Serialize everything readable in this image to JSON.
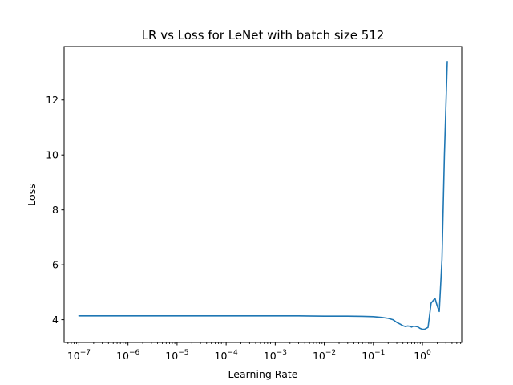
{
  "chart_data": {
    "type": "line",
    "title": "LR vs Loss for LeNet with batch size 512",
    "xlabel": "Learning Rate",
    "ylabel": "Loss",
    "x_scale": "log",
    "xlim": [
      5e-08,
      6.3
    ],
    "ylim": [
      3.17,
      13.95
    ],
    "grid": false,
    "x_ticks": [
      {
        "value": 1e-07,
        "base": "10",
        "exp": "−7"
      },
      {
        "value": 1e-06,
        "base": "10",
        "exp": "−6"
      },
      {
        "value": 1e-05,
        "base": "10",
        "exp": "−5"
      },
      {
        "value": 0.0001,
        "base": "10",
        "exp": "−4"
      },
      {
        "value": 0.001,
        "base": "10",
        "exp": "−3"
      },
      {
        "value": 0.01,
        "base": "10",
        "exp": "−2"
      },
      {
        "value": 0.1,
        "base": "10",
        "exp": "−1"
      },
      {
        "value": 1,
        "base": "10",
        "exp": "0"
      }
    ],
    "y_ticks": [
      {
        "value": 4,
        "label": "4"
      },
      {
        "value": 6,
        "label": "6"
      },
      {
        "value": 8,
        "label": "8"
      },
      {
        "value": 10,
        "label": "10"
      },
      {
        "value": 12,
        "label": "12"
      }
    ],
    "series": [
      {
        "color": "#1f77b4",
        "x": [
          1e-07,
          3e-07,
          1e-06,
          3e-06,
          1e-05,
          3e-05,
          0.0001,
          0.0003,
          0.001,
          0.003,
          0.01,
          0.03,
          0.06,
          0.1,
          0.15,
          0.2,
          0.25,
          0.3,
          0.35,
          0.4,
          0.45,
          0.5,
          0.55,
          0.6,
          0.65,
          0.7,
          0.8,
          0.9,
          1.0,
          1.1,
          1.3,
          1.5,
          1.8,
          2.0,
          2.2,
          2.5,
          2.8,
          3.2
        ],
        "y": [
          4.14,
          4.14,
          4.14,
          4.14,
          4.14,
          4.14,
          4.14,
          4.14,
          4.14,
          4.14,
          4.13,
          4.13,
          4.12,
          4.11,
          4.08,
          4.05,
          4.0,
          3.9,
          3.84,
          3.78,
          3.75,
          3.77,
          3.76,
          3.73,
          3.76,
          3.76,
          3.74,
          3.68,
          3.65,
          3.65,
          3.72,
          4.6,
          4.78,
          4.5,
          4.3,
          6.2,
          10.0,
          13.4
        ]
      }
    ]
  }
}
